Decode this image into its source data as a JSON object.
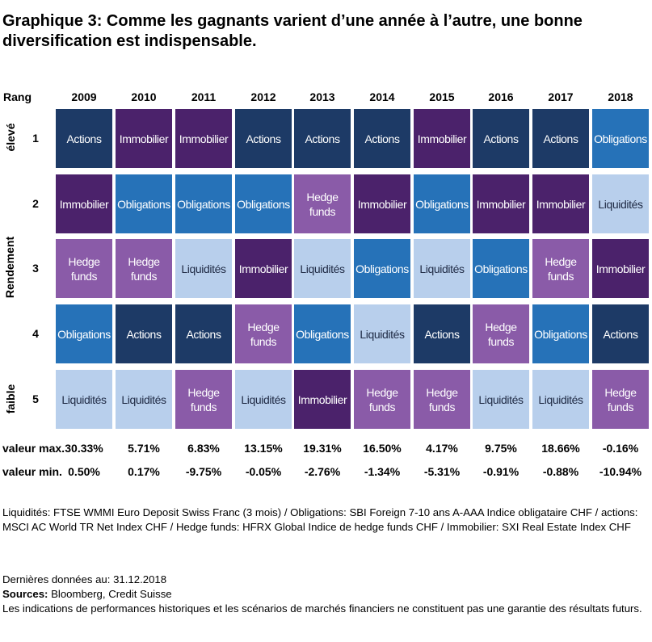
{
  "title": "Graphique 3: Comme les gagnants varient d’une année à l’autre, une bonne diversification est indispensable.",
  "axis": {
    "rank_header": "Rang",
    "high_label": "élevé",
    "mid_label": "Rendement",
    "low_label": "faible"
  },
  "colors": {
    "Actions": "#1d3a66",
    "Immobilier": "#4b226b",
    "Obligations": "#2672b8",
    "Hedge funds": "#8a5ba8",
    "Liquidités": "#b8cfec"
  },
  "chart_data": {
    "type": "table",
    "years": [
      "2009",
      "2010",
      "2011",
      "2012",
      "2013",
      "2014",
      "2015",
      "2016",
      "2017",
      "2018"
    ],
    "ranks": [
      "1",
      "2",
      "3",
      "4",
      "5"
    ],
    "grid": [
      [
        "Actions",
        "Immobilier",
        "Immobilier",
        "Actions",
        "Actions",
        "Actions",
        "Immobilier",
        "Actions",
        "Actions",
        "Obligations"
      ],
      [
        "Immobilier",
        "Obligations",
        "Obligations",
        "Obligations",
        "Hedge funds",
        "Immobilier",
        "Obligations",
        "Immobilier",
        "Immobilier",
        "Liquidités"
      ],
      [
        "Hedge funds",
        "Hedge funds",
        "Liquidités",
        "Immobilier",
        "Liquidités",
        "Obligations",
        "Liquidités",
        "Obligations",
        "Hedge funds",
        "Immobilier"
      ],
      [
        "Obligations",
        "Actions",
        "Actions",
        "Hedge funds",
        "Obligations",
        "Liquidités",
        "Actions",
        "Hedge funds",
        "Obligations",
        "Actions"
      ],
      [
        "Liquidités",
        "Liquidités",
        "Hedge funds",
        "Liquidités",
        "Immobilier",
        "Hedge funds",
        "Hedge funds",
        "Liquidités",
        "Liquidités",
        "Hedge funds"
      ]
    ],
    "max_label": "valeur max.",
    "min_label": "valeur min.",
    "max_values": [
      "30.33%",
      "5.71%",
      "6.83%",
      "13.15%",
      "19.31%",
      "16.50%",
      "4.17%",
      "9.75%",
      "18.66%",
      "-0.16%"
    ],
    "min_values": [
      "0.50%",
      "0.17%",
      "-9.75%",
      "-0.05%",
      "-2.76%",
      "-1.34%",
      "-5.31%",
      "-0.91%",
      "-0.88%",
      "-10.94%"
    ]
  },
  "legend_text": "Liquidités: FTSE WMMI Euro Deposit Swiss Franc (3 mois) / Obligations: SBI Foreign 7-10 ans A-AAA Indice obligataire CHF / actions: MSCI AC World TR Net Index CHF / Hedge funds: HFRX Global Indice de hedge funds CHF / Immobilier: SXI Real Estate Index CHF",
  "notes": {
    "date": "Dernières données au: 31.12.2018",
    "sources_label": "Sources:",
    "sources_value": " Bloomberg, Credit Suisse",
    "disclaimer": "Les indications de performances historiques et les scénarios de marchés financiers ne constituent pas une garantie des résultats futurs."
  }
}
